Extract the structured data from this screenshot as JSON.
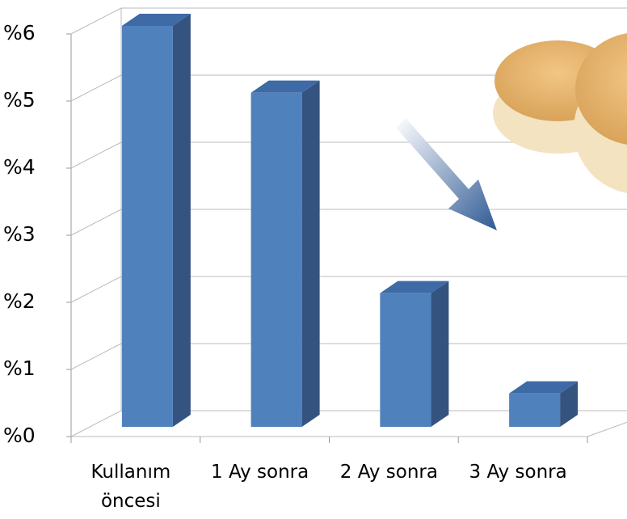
{
  "chart_data": {
    "type": "bar3d",
    "categories": [
      "Kullanım öncesi",
      "1 Ay sonra",
      "2 Ay sonra",
      "3 Ay sonra"
    ],
    "values": [
      6,
      5,
      2,
      0.5
    ],
    "color": "#4f81bd",
    "ylim": [
      0,
      6
    ],
    "yticks": [
      {
        "value": 0,
        "label": "%0"
      },
      {
        "value": 1,
        "label": "%1"
      },
      {
        "value": 2,
        "label": "%2"
      },
      {
        "value": 3,
        "label": "%3"
      },
      {
        "value": 4,
        "label": "%4"
      },
      {
        "value": 5,
        "label": "%5"
      },
      {
        "value": 6,
        "label": "%6"
      }
    ],
    "grid": true
  }
}
